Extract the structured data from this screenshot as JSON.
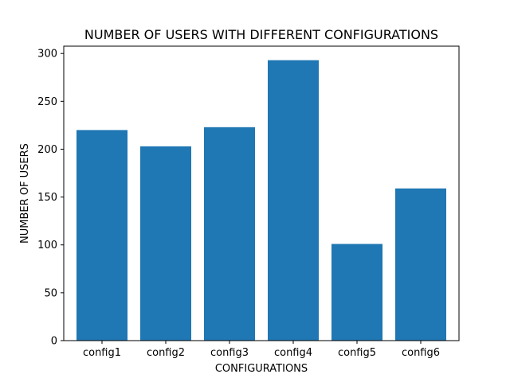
{
  "chart_data": {
    "type": "bar",
    "title": "NUMBER OF USERS WITH DIFFERENT CONFIGURATIONS",
    "xlabel": "CONFIGURATIONS",
    "ylabel": "NUMBER OF USERS",
    "categories": [
      "config1",
      "config2",
      "config3",
      "config4",
      "config5",
      "config6"
    ],
    "values": [
      220,
      203,
      223,
      293,
      101,
      159
    ],
    "ylim": [
      0,
      307.65
    ],
    "yticks": [
      0,
      50,
      100,
      150,
      200,
      250,
      300
    ],
    "bar_color": "#1f77b4",
    "grid": false,
    "legend": "none"
  }
}
